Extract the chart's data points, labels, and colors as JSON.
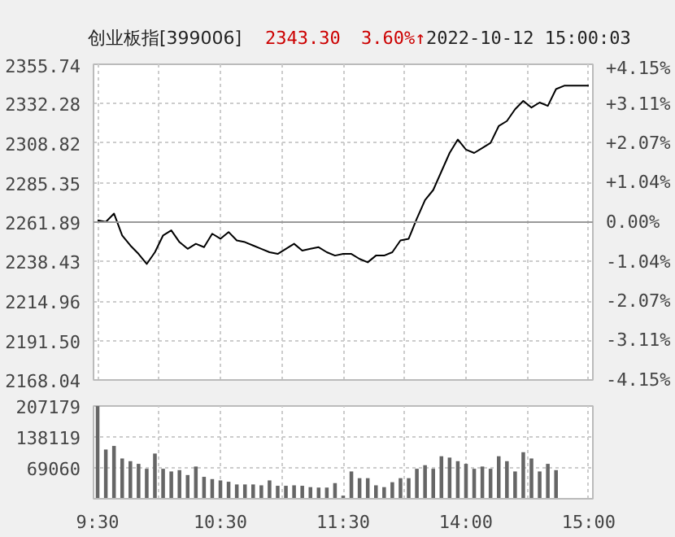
{
  "chart_data": [
    {
      "type": "line",
      "title": "创业板指[399006]",
      "annotations": [
        "2343.30",
        "3.60%↑",
        "2022-10-12 15:00:03"
      ],
      "categories": [
        null,
        null,
        null,
        null,
        null,
        null,
        null,
        null,
        null,
        null,
        null,
        null,
        null,
        null,
        null,
        null,
        null,
        null,
        null,
        null,
        null,
        null,
        null,
        null,
        null,
        null,
        null,
        null,
        null,
        null,
        null,
        null,
        null,
        null,
        null,
        null,
        null,
        null,
        null,
        null,
        null,
        null,
        null,
        null,
        null,
        null,
        null,
        null,
        null,
        null,
        null,
        null,
        null,
        null,
        null,
        null,
        null,
        null,
        null,
        null,
        null
      ],
      "series": [
        {
          "color": "#000000",
          "values": [
            2263,
            2262,
            2267,
            2254,
            2248,
            2243,
            2237,
            2244,
            2254,
            2257,
            2250,
            2246,
            2249,
            2247,
            2255,
            2252,
            2256,
            2251,
            2250,
            2248,
            2246,
            2244,
            2243,
            2246,
            2249,
            2245,
            2246,
            2247,
            2244,
            2242,
            2243,
            2243,
            2240,
            2238,
            2242,
            2242,
            2244,
            2251,
            2252,
            2264,
            2275,
            2281,
            2292,
            2303,
            2311,
            2305,
            2303,
            2306,
            2309,
            2319,
            2322,
            2329,
            2334,
            2330,
            2333,
            2331,
            2341,
            2343,
            2343,
            2343,
            2343
          ]
        }
      ],
      "ylim": [
        2168.04,
        2355.74
      ],
      "yticks": [
        2168.04,
        {
          "value": 2191.5,
          "label": "2191.50"
        },
        2214.96,
        2238.43,
        2261.89,
        2285.35,
        2308.82,
        2332.28,
        2355.74
      ],
      "y2lim": [
        -4.15,
        4.15
      ],
      "y2ticks": [
        {
          "value": -4.15,
          "label": "-4.15%"
        },
        {
          "value": -3.11,
          "label": "-3.11%"
        },
        {
          "value": -2.07,
          "label": "-2.07%"
        },
        {
          "value": -1.04,
          "label": "-1.04%"
        },
        {
          "value": 0,
          "label": "0.00%"
        },
        {
          "value": 1.04,
          "label": "+1.04%"
        },
        {
          "value": 2.07,
          "label": "+2.07%"
        },
        {
          "value": 3.11,
          "label": "+3.11%"
        },
        {
          "value": 4.15,
          "label": "+4.15%"
        }
      ],
      "ref_lines": [
        {
          "axis": "y",
          "value": 2261.89,
          "color": "#999999"
        }
      ],
      "grid": true
    },
    {
      "type": "bar",
      "categories": [
        "9:30",
        null,
        null,
        null,
        null,
        null,
        null,
        null,
        null,
        null,
        null,
        null,
        null,
        null,
        null,
        "10:30",
        null,
        null,
        null,
        null,
        null,
        null,
        null,
        null,
        null,
        null,
        null,
        null,
        null,
        null,
        "11:30",
        null,
        null,
        null,
        null,
        null,
        null,
        null,
        null,
        null,
        null,
        null,
        null,
        null,
        null,
        "14:00",
        null,
        null,
        null,
        null,
        null,
        null,
        null,
        null,
        null,
        null,
        null,
        null,
        null,
        null,
        "15:00"
      ],
      "series": [
        {
          "color": "#666666",
          "values": [
            207000,
            110000,
            118000,
            90000,
            84000,
            78000,
            67000,
            101000,
            67000,
            61000,
            64000,
            53000,
            72000,
            49000,
            44000,
            41000,
            38000,
            32000,
            32000,
            32000,
            30000,
            41000,
            29000,
            29000,
            30000,
            29000,
            26000,
            25000,
            25000,
            35000,
            7000,
            61000,
            46000,
            46000,
            30000,
            26000,
            37000,
            46000,
            46000,
            67000,
            75000,
            67000,
            95000,
            92000,
            84000,
            78000,
            67000,
            72000,
            67000,
            95000,
            84000,
            61000,
            104000,
            90000,
            61000,
            78000,
            64000,
            null,
            null,
            null,
            null
          ]
        }
      ],
      "ylim": [
        0,
        207179
      ],
      "yticks": [
        {
          "value": 0,
          "label": null
        },
        69060,
        138119,
        207179
      ],
      "grid": true
    }
  ]
}
